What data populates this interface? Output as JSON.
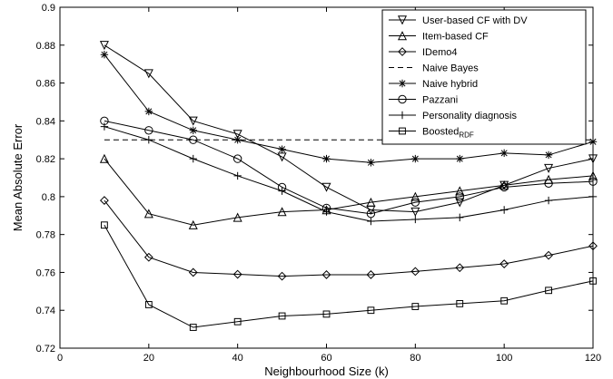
{
  "chart_data": {
    "type": "line",
    "title": "",
    "xlabel": "Neighbourhood Size (k)",
    "ylabel": "Mean Absolute Error",
    "xlim": [
      0,
      120
    ],
    "ylim": [
      0.72,
      0.9
    ],
    "xticks": [
      "0",
      "20",
      "40",
      "60",
      "80",
      "100",
      "120"
    ],
    "yticks": [
      "0.72",
      "0.74",
      "0.76",
      "0.78",
      "0.8",
      "0.82",
      "0.84",
      "0.86",
      "0.88",
      "0.9"
    ],
    "grid": false,
    "legend_position": "top-right",
    "x": [
      10,
      20,
      30,
      40,
      50,
      60,
      70,
      80,
      90,
      100,
      110,
      120
    ],
    "series": [
      {
        "name": "User-based CF with DV",
        "marker": "triangle-down",
        "dashed": false,
        "values": [
          0.88,
          0.865,
          0.84,
          0.833,
          0.821,
          0.805,
          0.793,
          0.792,
          0.797,
          0.806,
          0.815,
          0.82
        ]
      },
      {
        "name": "Item-based CF",
        "marker": "triangle-up",
        "dashed": false,
        "values": [
          0.82,
          0.791,
          0.785,
          0.789,
          0.792,
          0.793,
          0.797,
          0.8,
          0.803,
          0.806,
          0.809,
          0.811
        ]
      },
      {
        "name": "IDemo4",
        "marker": "diamond",
        "dashed": false,
        "values": [
          0.798,
          0.768,
          0.76,
          0.759,
          0.758,
          0.7588,
          0.7588,
          0.7605,
          0.7625,
          0.7645,
          0.769,
          0.774
        ]
      },
      {
        "name": "Naive Bayes",
        "marker": "none",
        "dashed": true,
        "values": [
          0.83,
          0.83,
          0.83,
          0.83,
          0.83,
          0.83,
          0.83,
          0.83,
          0.83,
          0.83,
          0.83,
          0.83
        ]
      },
      {
        "name": "Naive hybrid",
        "marker": "asterisk",
        "dashed": false,
        "values": [
          0.875,
          0.845,
          0.835,
          0.83,
          0.825,
          0.82,
          0.818,
          0.82,
          0.82,
          0.823,
          0.822,
          0.829
        ]
      },
      {
        "name": "Pazzani",
        "marker": "circle",
        "dashed": false,
        "values": [
          0.84,
          0.835,
          0.83,
          0.82,
          0.805,
          0.794,
          0.791,
          0.797,
          0.8,
          0.805,
          0.807,
          0.808
        ]
      },
      {
        "name": "Personality diagnosis",
        "marker": "plus",
        "dashed": false,
        "values": [
          0.837,
          0.83,
          0.82,
          0.811,
          0.803,
          0.792,
          0.787,
          0.788,
          0.789,
          0.793,
          0.798,
          0.8
        ]
      },
      {
        "name": "Boosted",
        "name_subscript": "RDF",
        "marker": "square",
        "dashed": false,
        "values": [
          0.785,
          0.743,
          0.731,
          0.734,
          0.737,
          0.738,
          0.74,
          0.742,
          0.7435,
          0.745,
          0.7505,
          0.7555
        ]
      }
    ]
  }
}
